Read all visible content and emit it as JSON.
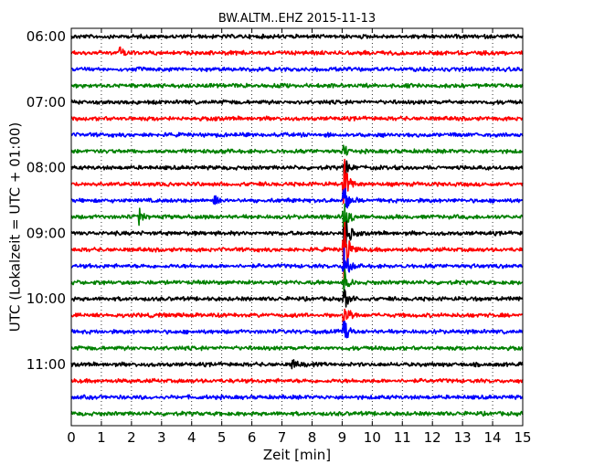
{
  "chart_data": {
    "type": "line",
    "title": "BW.ALTM..EHZ 2015-11-13",
    "xlabel": "Zeit  [min]",
    "ylabel": "UTC (Lokalzeit = UTC + 01:00)",
    "xlim": [
      0,
      15
    ],
    "x_ticks": [
      "0",
      "1",
      "2",
      "3",
      "4",
      "5",
      "6",
      "7",
      "8",
      "9",
      "10",
      "11",
      "12",
      "13",
      "14",
      "15"
    ],
    "y_ticks": [
      "06:00",
      "07:00",
      "08:00",
      "09:00",
      "10:00",
      "11:00"
    ],
    "grid": "vertical dotted",
    "colors": [
      "#000000",
      "#ff0000",
      "#0000ff",
      "#008000"
    ],
    "traces": [
      {
        "start": "06:00",
        "color": "#000000"
      },
      {
        "start": "06:15",
        "color": "#ff0000",
        "events": [
          {
            "t": 1.6,
            "amp": 0.35
          }
        ]
      },
      {
        "start": "06:30",
        "color": "#0000ff"
      },
      {
        "start": "06:45",
        "color": "#008000"
      },
      {
        "start": "07:00",
        "color": "#000000"
      },
      {
        "start": "07:15",
        "color": "#ff0000"
      },
      {
        "start": "07:30",
        "color": "#0000ff"
      },
      {
        "start": "07:45",
        "color": "#008000",
        "events": [
          {
            "t": 9.05,
            "amp": 0.5
          }
        ]
      },
      {
        "start": "08:00",
        "color": "#000000",
        "events": [
          {
            "t": 9.05,
            "amp": 0.9
          }
        ]
      },
      {
        "start": "08:15",
        "color": "#ff0000",
        "events": [
          {
            "t": 9.05,
            "amp": 2.2
          }
        ]
      },
      {
        "start": "08:30",
        "color": "#0000ff",
        "events": [
          {
            "t": 4.75,
            "amp": 0.5
          },
          {
            "t": 9.05,
            "amp": 1.8
          }
        ]
      },
      {
        "start": "08:45",
        "color": "#008000",
        "events": [
          {
            "t": 2.25,
            "amp": 0.6
          },
          {
            "t": 9.05,
            "amp": 2.0
          }
        ]
      },
      {
        "start": "09:00",
        "color": "#000000",
        "events": [
          {
            "t": 9.05,
            "amp": 2.2
          }
        ]
      },
      {
        "start": "09:15",
        "color": "#ff0000",
        "events": [
          {
            "t": 9.05,
            "amp": 2.6
          }
        ]
      },
      {
        "start": "09:30",
        "color": "#0000ff",
        "events": [
          {
            "t": 9.05,
            "amp": 1.5
          }
        ]
      },
      {
        "start": "09:45",
        "color": "#008000",
        "events": [
          {
            "t": 9.05,
            "amp": 1.0
          }
        ]
      },
      {
        "start": "10:00",
        "color": "#000000",
        "events": [
          {
            "t": 9.05,
            "amp": 1.0
          }
        ]
      },
      {
        "start": "10:15",
        "color": "#ff0000",
        "events": [
          {
            "t": 9.05,
            "amp": 1.4
          }
        ]
      },
      {
        "start": "10:30",
        "color": "#0000ff",
        "events": [
          {
            "t": 9.05,
            "amp": 0.9
          }
        ]
      },
      {
        "start": "10:45",
        "color": "#008000"
      },
      {
        "start": "11:00",
        "color": "#000000",
        "events": [
          {
            "t": 7.35,
            "amp": 0.3
          }
        ]
      },
      {
        "start": "11:15",
        "color": "#ff0000"
      },
      {
        "start": "11:30",
        "color": "#0000ff"
      },
      {
        "start": "11:45",
        "color": "#008000"
      }
    ]
  }
}
